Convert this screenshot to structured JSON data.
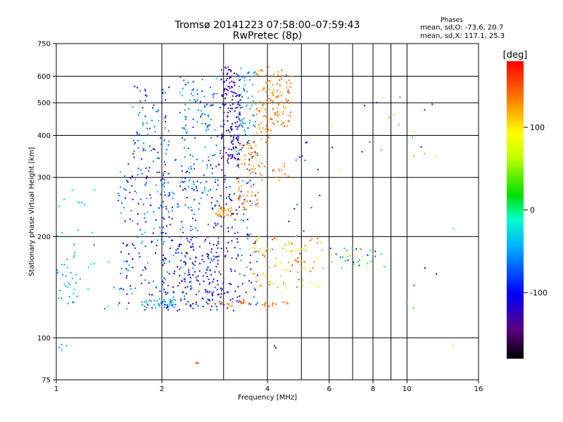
{
  "chart_data": {
    "type": "scatter",
    "title": "Tromsø 20141223 07:58:00–07:59:43",
    "subtitle": "RwPretec (8p)",
    "xlabel": "Frequency [MHz]",
    "ylabel": "Stationary phase Virtual Height [km]",
    "x_scale": "log",
    "y_scale": "log",
    "xlim": [
      1,
      16
    ],
    "ylim": [
      75,
      750
    ],
    "x_ticks": [
      1,
      2,
      4,
      6,
      8,
      10,
      16
    ],
    "x_minor": [
      3,
      5,
      7,
      9
    ],
    "y_ticks": [
      75,
      100,
      200,
      300,
      400,
      500,
      600,
      750
    ],
    "grid": true,
    "stats": {
      "heading": "Phases",
      "line_o": "mean, sd,O: -73.6, 20.7",
      "line_x": "mean, sd,X: 117.1, 25.3"
    },
    "colorbar": {
      "label": "[deg]",
      "range": [
        -180,
        180
      ],
      "ticks": [
        100,
        0,
        -100
      ],
      "colormap": "rainbow"
    },
    "clusters": [
      {
        "f": [
          1.0,
          1.15
        ],
        "h": [
          115,
          190
        ],
        "n": 30,
        "c": [
          -60,
          -30
        ]
      },
      {
        "f": [
          1.0,
          1.08
        ],
        "h": [
          92,
          96
        ],
        "n": 4,
        "c": [
          -50,
          -40
        ]
      },
      {
        "f": [
          1.0,
          1.3
        ],
        "h": [
          200,
          280
        ],
        "n": 14,
        "c": [
          -50,
          -20
        ]
      },
      {
        "f": [
          1.1,
          1.6
        ],
        "h": [
          120,
          190
        ],
        "n": 14,
        "c": [
          -60,
          -20
        ]
      },
      {
        "f": [
          1.5,
          2.05
        ],
        "h": [
          120,
          330
        ],
        "n": 150,
        "c": [
          -130,
          -30
        ]
      },
      {
        "f": [
          1.65,
          2.1
        ],
        "h": [
          330,
          560
        ],
        "n": 75,
        "c": [
          -110,
          -40
        ]
      },
      {
        "f": [
          1.75,
          2.2
        ],
        "h": [
          122,
          130
        ],
        "n": 40,
        "c": [
          -60,
          -40
        ]
      },
      {
        "f": [
          2.0,
          2.55
        ],
        "h": [
          120,
          340
        ],
        "n": 160,
        "c": [
          -140,
          -40
        ]
      },
      {
        "f": [
          2.25,
          2.95
        ],
        "h": [
          240,
          600
        ],
        "n": 130,
        "c": [
          -90,
          -40
        ]
      },
      {
        "f": [
          2.2,
          2.9
        ],
        "h": [
          122,
          200
        ],
        "n": 100,
        "c": [
          -140,
          -60
        ]
      },
      {
        "f": [
          2.7,
          3.3
        ],
        "h": [
          120,
          330
        ],
        "n": 110,
        "c": [
          -140,
          -70
        ]
      },
      {
        "f": [
          2.95,
          3.35
        ],
        "h": [
          330,
          640
        ],
        "n": 150,
        "c": [
          -140,
          -100
        ]
      },
      {
        "f": [
          2.85,
          3.15
        ],
        "h": [
          230,
          245
        ],
        "n": 30,
        "c": [
          110,
          140
        ]
      },
      {
        "f": [
          3.25,
          3.75
        ],
        "h": [
          120,
          400
        ],
        "n": 80,
        "c": [
          -130,
          -40
        ]
      },
      {
        "f": [
          3.3,
          3.7
        ],
        "h": [
          400,
          640
        ],
        "n": 60,
        "c": [
          -80,
          -30
        ]
      },
      {
        "f": [
          3.3,
          3.8
        ],
        "h": [
          240,
          380
        ],
        "n": 70,
        "c": [
          115,
          150
        ]
      },
      {
        "f": [
          3.7,
          4.1
        ],
        "h": [
          380,
          640
        ],
        "n": 60,
        "c": [
          115,
          150
        ]
      },
      {
        "f": [
          4.1,
          4.7
        ],
        "h": [
          420,
          630
        ],
        "n": 70,
        "c": [
          120,
          160
        ]
      },
      {
        "f": [
          3.8,
          4.7
        ],
        "h": [
          290,
          330
        ],
        "n": 18,
        "c": [
          120,
          150
        ]
      },
      {
        "f": [
          3.6,
          5.2
        ],
        "h": [
          140,
          200
        ],
        "n": 70,
        "c": [
          40,
          170
        ]
      },
      {
        "f": [
          3.7,
          4.6
        ],
        "h": [
          124,
          128
        ],
        "n": 14,
        "c": [
          130,
          150
        ]
      },
      {
        "f": [
          3.35,
          3.55
        ],
        "h": [
          124,
          130
        ],
        "n": 10,
        "c": [
          130,
          150
        ]
      },
      {
        "f": [
          2.7,
          3.2
        ],
        "h": [
          124,
          128
        ],
        "n": 10,
        "c": [
          120,
          150
        ]
      },
      {
        "f": [
          4.8,
          5.8
        ],
        "h": [
          140,
          200
        ],
        "n": 25,
        "c": [
          30,
          160
        ]
      },
      {
        "f": [
          6.0,
          8.8
        ],
        "h": [
          160,
          185
        ],
        "n": 35,
        "c": [
          -100,
          100
        ]
      },
      {
        "f": [
          4.5,
          6.0
        ],
        "h": [
          200,
          400
        ],
        "n": 14,
        "c": [
          -120,
          -40
        ]
      },
      {
        "f": [
          6.0,
          10.0
        ],
        "h": [
          300,
          620
        ],
        "n": 12,
        "c": [
          -140,
          100
        ]
      },
      {
        "f": [
          9.0,
          14.0
        ],
        "h": [
          120,
          500
        ],
        "n": 14,
        "c": [
          -160,
          80
        ]
      },
      {
        "f": [
          2.45,
          2.55
        ],
        "h": [
          84,
          88
        ],
        "n": 3,
        "c": [
          150,
          160
        ]
      },
      {
        "f": [
          4.1,
          4.3
        ],
        "h": [
          93,
          95
        ],
        "n": 2,
        "c": [
          -130,
          -120
        ]
      },
      {
        "f": [
          13.5,
          13.7
        ],
        "h": [
          93,
          95
        ],
        "n": 1,
        "c": [
          90,
          90
        ]
      }
    ]
  }
}
